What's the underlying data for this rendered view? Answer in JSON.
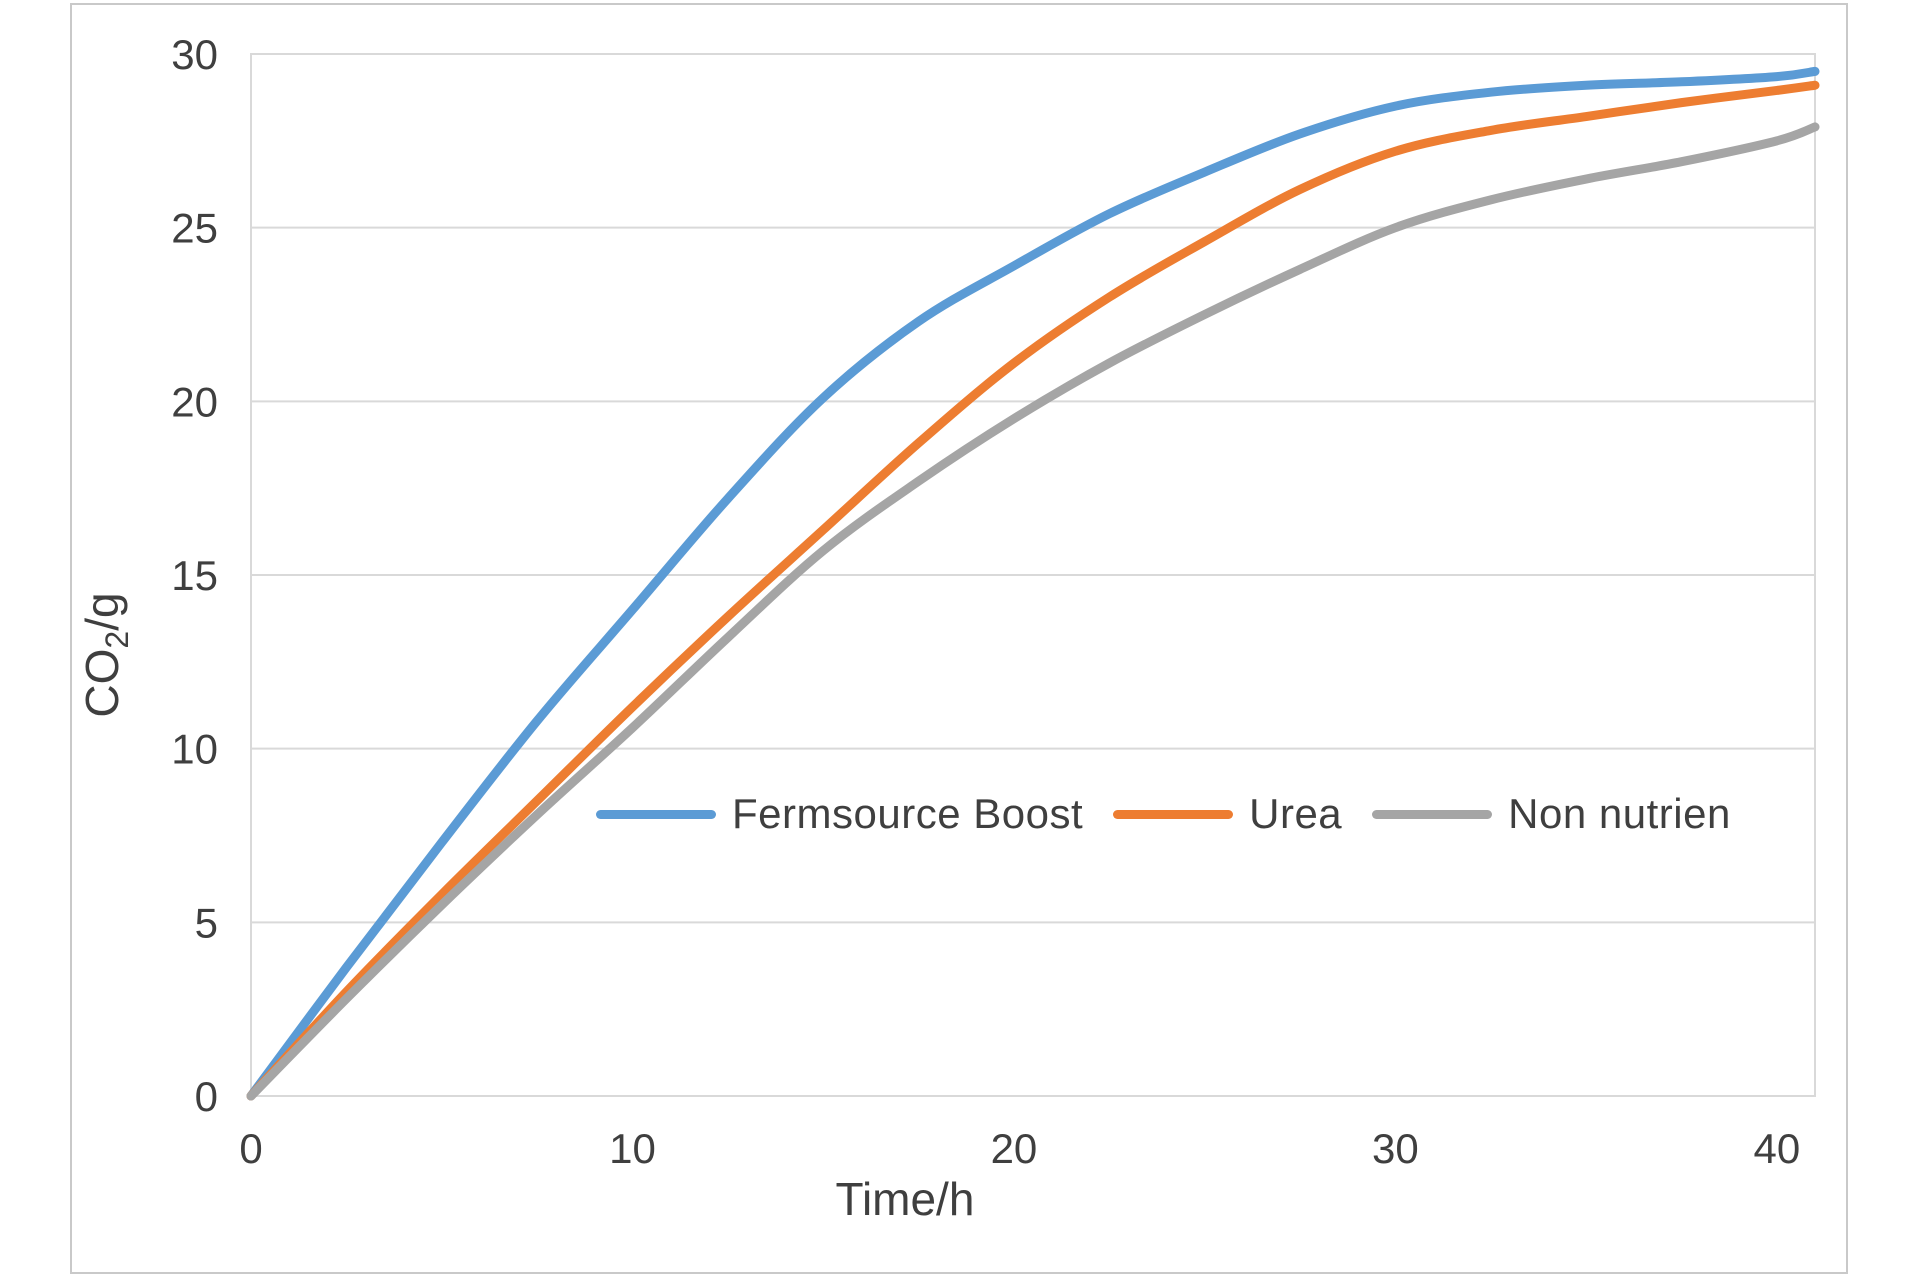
{
  "chart_data": {
    "type": "line",
    "title": "",
    "xlabel": "Time/h",
    "ylabel": "CO2/g",
    "ylabel_parts": {
      "pre": "CO",
      "sub": "2",
      "post": "/g"
    },
    "x_ticks": [
      0,
      10,
      20,
      30,
      40
    ],
    "y_ticks": [
      0,
      5,
      10,
      15,
      20,
      25,
      30
    ],
    "xlim": [
      0,
      41
    ],
    "ylim": [
      0,
      30
    ],
    "grid": "horizontal-only",
    "legend_position": "inside-plot-lower-center",
    "x": [
      0,
      2.5,
      5,
      7.5,
      10,
      12.5,
      15,
      17.5,
      20,
      22.5,
      25,
      27.5,
      30,
      32.5,
      35,
      37.5,
      40,
      41
    ],
    "series": [
      {
        "name": "Fermsource Boost",
        "color": "#5B9BD5",
        "values": [
          0,
          3.7,
          7.3,
          10.8,
          14.0,
          17.2,
          20.1,
          22.3,
          23.9,
          25.4,
          26.6,
          27.7,
          28.5,
          28.9,
          29.1,
          29.2,
          29.35,
          29.5
        ]
      },
      {
        "name": "Urea",
        "color": "#ED7D31",
        "values": [
          0,
          3.0,
          5.8,
          8.5,
          11.2,
          13.8,
          16.3,
          18.8,
          21.1,
          23.0,
          24.6,
          26.1,
          27.2,
          27.8,
          28.2,
          28.6,
          28.95,
          29.1
        ]
      },
      {
        "name": "Non nutrien",
        "color": "#A5A5A5",
        "values": [
          0,
          2.8,
          5.5,
          8.1,
          10.6,
          13.2,
          15.7,
          17.7,
          19.5,
          21.1,
          22.5,
          23.8,
          25.0,
          25.8,
          26.4,
          26.9,
          27.5,
          27.9
        ]
      }
    ]
  },
  "colors": {
    "gridline": "#D9D9D9",
    "plot_border": "#D9D9D9",
    "frame_border": "#C9C9C9",
    "axis_text": "#3F3F3F"
  }
}
